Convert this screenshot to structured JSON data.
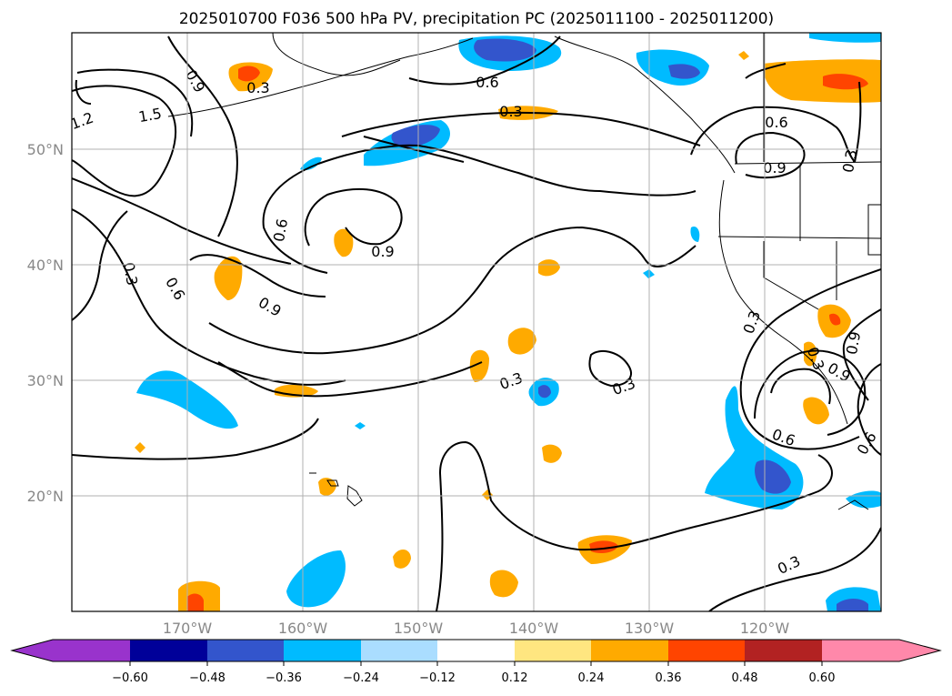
{
  "title": "2025010700 F036 500 hPa PV, precipitation PC (2025011100 - 2025011200)",
  "map": {
    "lon_range": [
      -180,
      -110
    ],
    "lat_range": [
      10,
      60
    ],
    "lat_ticks": [
      {
        "value": 50,
        "label": "50°N"
      },
      {
        "value": 40,
        "label": "40°N"
      },
      {
        "value": 30,
        "label": "30°N"
      },
      {
        "value": 20,
        "label": "20°N"
      }
    ],
    "lon_ticks": [
      {
        "value": -170,
        "label": "170°W"
      },
      {
        "value": -160,
        "label": "160°W"
      },
      {
        "value": -150,
        "label": "150°W"
      },
      {
        "value": -140,
        "label": "140°W"
      },
      {
        "value": -130,
        "label": "130°W"
      },
      {
        "value": -120,
        "label": "120°W"
      }
    ],
    "gridlines": true,
    "contour_variable": "500 hPa PV",
    "contour_labels": [
      "1.5",
      "1.2",
      "0.9",
      "0.6",
      "0.3",
      "0.9",
      "0.6",
      "0.3",
      "0.3",
      "0.6",
      "0.9",
      "0.9",
      "0.6",
      "0.3",
      "0.3",
      "0.3",
      "0.3",
      "0.6",
      "0.9",
      "0.3",
      "0.9",
      "0.6",
      "0.3",
      "0.3",
      "0.3"
    ],
    "shading_variable": "precipitation PC"
  },
  "colorbar": {
    "extend": "both",
    "colors": [
      "#9933cc",
      "#000099",
      "#3355cc",
      "#00bbff",
      "#aaddff",
      "#ffffff",
      "#ffe680",
      "#ffaa00",
      "#ff4400",
      "#b22222",
      "#ff88aa"
    ],
    "tick_labels": [
      "−0.60",
      "−0.48",
      "−0.36",
      "−0.24",
      "−0.12",
      "0.12",
      "0.24",
      "0.36",
      "0.48",
      "0.60"
    ]
  }
}
